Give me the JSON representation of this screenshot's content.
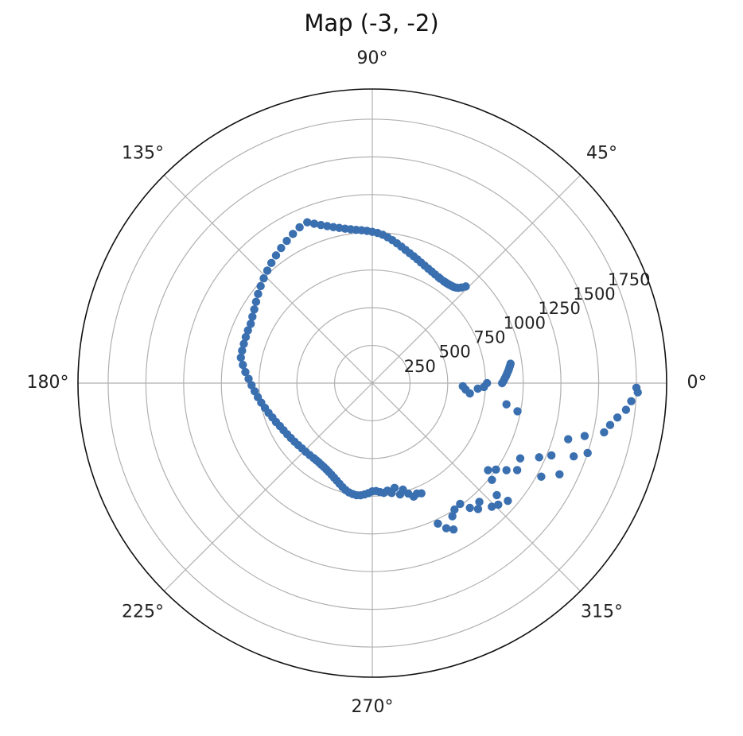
{
  "chart_data": {
    "type": "scatter",
    "projection": "polar",
    "title": "Map (-3, -2)",
    "angle_ticks_deg": [
      0,
      45,
      90,
      135,
      180,
      225,
      270,
      315
    ],
    "angle_tick_labels": [
      "0°",
      "45°",
      "90°",
      "135°",
      "180°",
      "225°",
      "270°",
      "315°"
    ],
    "r_ticks": [
      250,
      500,
      750,
      1000,
      1250,
      1500,
      1750
    ],
    "r_tick_labels": [
      "250",
      "500",
      "750",
      "1000",
      "1250",
      "1500",
      "1750"
    ],
    "rlim": [
      0,
      1950
    ],
    "r_label_angle_deg": 22.5,
    "grid": true,
    "marker_color": "#3a6fb0",
    "series": [
      {
        "points": [
          [
            891,
            46
          ],
          [
            867,
            47
          ],
          [
            850,
            48
          ],
          [
            840,
            49
          ],
          [
            834,
            50
          ],
          [
            831,
            51
          ],
          [
            828,
            52
          ],
          [
            826,
            53
          ],
          [
            825,
            54
          ],
          [
            825,
            55
          ],
          [
            826,
            57
          ],
          [
            828,
            58
          ],
          [
            832,
            60
          ],
          [
            838,
            62
          ],
          [
            845,
            64
          ],
          [
            853,
            66
          ],
          [
            862,
            68
          ],
          [
            873,
            70
          ],
          [
            885,
            72
          ],
          [
            897,
            74
          ],
          [
            910,
            76
          ],
          [
            925,
            78
          ],
          [
            941,
            80
          ],
          [
            957,
            82
          ],
          [
            972,
            84
          ],
          [
            986,
            86
          ],
          [
            996,
            88
          ],
          [
            1003,
            90
          ],
          [
            1010,
            92
          ],
          [
            1016,
            94
          ],
          [
            1022,
            96
          ],
          [
            1030,
            98
          ],
          [
            1040,
            100
          ],
          [
            1052,
            102
          ],
          [
            1066,
            104
          ],
          [
            1083,
            106
          ],
          [
            1102,
            108
          ],
          [
            1125,
            110
          ],
          [
            1150,
            112
          ],
          [
            1140,
            115
          ],
          [
            1120,
            118
          ],
          [
            1100,
            121
          ],
          [
            1080,
            124
          ],
          [
            1060,
            127
          ],
          [
            1040,
            130
          ],
          [
            1020,
            133
          ],
          [
            1000,
            136
          ],
          [
            980,
            139
          ],
          [
            960,
            142
          ],
          [
            940,
            145
          ],
          [
            922,
            148
          ],
          [
            908,
            151
          ],
          [
            896,
            154
          ],
          [
            895,
            157
          ],
          [
            892,
            160
          ],
          [
            890,
            163
          ],
          [
            889,
            166
          ],
          [
            887,
            169
          ],
          [
            866,
            172
          ],
          [
            844,
            175
          ],
          [
            820,
            178
          ],
          [
            800,
            181
          ],
          [
            781,
            184
          ],
          [
            764,
            187
          ],
          [
            747,
            190
          ],
          [
            730,
            193
          ],
          [
            715,
            196
          ],
          [
            700,
            199
          ],
          [
            688,
            202
          ],
          [
            675,
            205
          ],
          [
            666,
            208
          ],
          [
            658,
            211
          ],
          [
            651,
            214
          ],
          [
            645,
            217
          ],
          [
            640,
            220
          ],
          [
            636,
            223
          ],
          [
            634,
            226
          ],
          [
            632,
            229
          ],
          [
            631,
            232
          ],
          [
            632,
            234
          ],
          [
            634,
            236
          ],
          [
            638,
            238
          ],
          [
            642,
            240
          ],
          [
            648,
            242
          ],
          [
            656,
            244
          ],
          [
            665,
            246
          ],
          [
            676,
            248
          ],
          [
            688,
            250
          ],
          [
            702,
            252
          ],
          [
            717,
            254
          ],
          [
            731,
            256
          ],
          [
            741,
            258
          ],
          [
            747,
            260
          ],
          [
            751,
            262
          ],
          [
            748,
            264
          ],
          [
            740,
            266
          ],
          [
            730,
            268
          ],
          [
            718,
            270
          ],
          [
            716,
            272
          ],
          [
            724,
            274
          ],
          [
            732,
            276
          ],
          [
            720,
            278
          ],
          [
            740,
            280
          ],
          [
            710,
            282
          ],
          [
            761,
            284
          ],
          [
            735,
            286
          ],
          [
            770,
            288
          ],
          [
            801,
            290
          ],
          [
            790,
            292
          ],
          [
            800,
            294
          ],
          [
            1028,
            295
          ],
          [
            1080,
            297
          ],
          [
            1110,
            299
          ],
          [
            1030,
            301
          ],
          [
            1000,
            303
          ],
          [
            990,
            306
          ],
          [
            1050,
            308
          ],
          [
            1090,
            310
          ],
          [
            1060,
            312
          ],
          [
            1140,
            314
          ],
          [
            1160,
            316
          ],
          [
            1110,
            318
          ],
          [
            1190,
            319
          ],
          [
            1020,
            321
          ],
          [
            960,
            323
          ],
          [
            1000,
            325
          ],
          [
            1060,
            327
          ],
          [
            1120,
            329
          ],
          [
            1280,
            331
          ],
          [
            1100,
            333
          ],
          [
            1380,
            334
          ],
          [
            1210,
            336
          ],
          [
            1280,
            338
          ],
          [
            1420,
            340
          ],
          [
            1500,
            342
          ],
          [
            1350,
            344
          ],
          [
            1450,
            346
          ],
          [
            1570,
            348
          ],
          [
            1600,
            350
          ],
          [
            1640,
            352
          ],
          [
            1690,
            354
          ],
          [
            1720,
            356
          ],
          [
            1760,
            358
          ],
          [
            1750,
            359
          ],
          [
            650,
            354
          ],
          [
            620,
            356
          ],
          [
            600,
            358
          ],
          [
            700,
            357
          ],
          [
            740,
            358
          ],
          [
            760,
            360
          ],
          [
            980,
            349
          ],
          [
            900,
            351
          ],
          [
            860,
            0
          ],
          [
            870,
            1
          ],
          [
            878,
            2
          ],
          [
            887,
            3
          ],
          [
            895,
            4
          ],
          [
            903,
            5
          ],
          [
            911,
            6
          ],
          [
            918,
            7
          ],
          [
            925,
            8
          ]
        ]
      }
    ]
  }
}
